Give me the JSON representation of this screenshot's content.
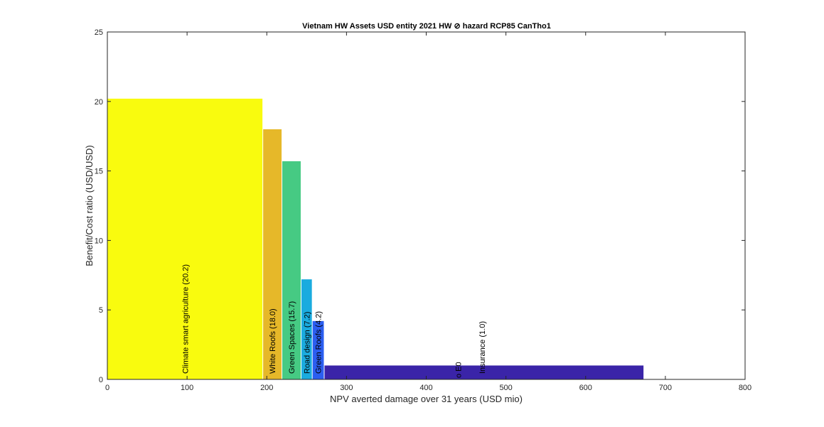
{
  "chart_data": {
    "type": "bar",
    "title": "Vietnam HW Assets USD entity 2021 HW ⊘ hazard RCP85 CanTho1",
    "xlabel": "NPV averted damage over 31 years (USD mio)",
    "ylabel": "Benefit/Cost ratio (USD/USD)",
    "xlim": [
      0,
      800
    ],
    "ylim": [
      0,
      25
    ],
    "xticks": [
      0,
      100,
      200,
      300,
      400,
      500,
      600,
      700,
      800
    ],
    "yticks": [
      0,
      5,
      10,
      15,
      20,
      25
    ],
    "grid": false,
    "bars": [
      {
        "name": "Climate smart agriculture",
        "label": "Climate smart agriculture  (20.2)",
        "x_start": 0,
        "x_end": 195,
        "value": 20.2,
        "color": "#F9FB0E"
      },
      {
        "name": "White Roofs",
        "label": "White Roofs  (18.0)",
        "x_start": 195,
        "x_end": 219,
        "value": 18.0,
        "color": "#E6B829"
      },
      {
        "name": "Green Spaces",
        "label": "Green Spaces  (15.7)",
        "x_start": 219,
        "x_end": 243,
        "value": 15.7,
        "color": "#46CA83"
      },
      {
        "name": "Road design",
        "label": "Road design  (7.2)",
        "x_start": 243,
        "x_end": 257,
        "value": 7.2,
        "color": "#1AABDF"
      },
      {
        "name": "Green Roofs",
        "label": "Green Roofs  (4.2)",
        "x_start": 257,
        "x_end": 272,
        "value": 4.2,
        "color": "#2B5EF0"
      },
      {
        "name": "Insurance",
        "label": "Insurance  (1.0)",
        "x_start": 272,
        "x_end": 673,
        "value": 1.0,
        "color": "#3A24A8"
      }
    ],
    "reference_marker": {
      "label": "o  E0",
      "x": 440,
      "color": "#D9541A"
    }
  }
}
